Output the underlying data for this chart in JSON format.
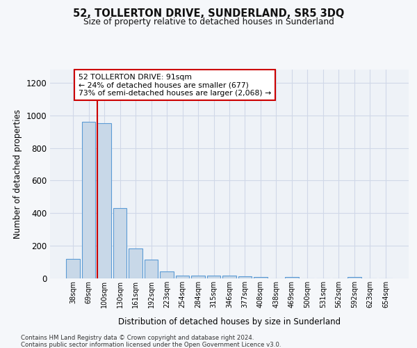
{
  "title": "52, TOLLERTON DRIVE, SUNDERLAND, SR5 3DQ",
  "subtitle": "Size of property relative to detached houses in Sunderland",
  "xlabel": "Distribution of detached houses by size in Sunderland",
  "ylabel": "Number of detached properties",
  "categories": [
    "38sqm",
    "69sqm",
    "100sqm",
    "130sqm",
    "161sqm",
    "192sqm",
    "223sqm",
    "254sqm",
    "284sqm",
    "315sqm",
    "346sqm",
    "377sqm",
    "408sqm",
    "438sqm",
    "469sqm",
    "500sqm",
    "531sqm",
    "562sqm",
    "592sqm",
    "623sqm",
    "654sqm"
  ],
  "values": [
    120,
    960,
    950,
    430,
    185,
    115,
    42,
    18,
    15,
    15,
    15,
    12,
    10,
    0,
    10,
    0,
    0,
    0,
    10,
    0,
    0
  ],
  "bar_color": "#c8d8e8",
  "bar_edge_color": "#5b9bd5",
  "grid_color": "#d0d8e8",
  "vline_color": "#cc0000",
  "annotation_text": "52 TOLLERTON DRIVE: 91sqm\n← 24% of detached houses are smaller (677)\n73% of semi-detached houses are larger (2,068) →",
  "annotation_box_color": "#ffffff",
  "annotation_box_edge": "#cc0000",
  "ylim": [
    0,
    1280
  ],
  "yticks": [
    0,
    200,
    400,
    600,
    800,
    1000,
    1200
  ],
  "footer1": "Contains HM Land Registry data © Crown copyright and database right 2024.",
  "footer2": "Contains public sector information licensed under the Open Government Licence v3.0.",
  "bg_color": "#eef2f7",
  "fig_bg": "#f5f7fa"
}
